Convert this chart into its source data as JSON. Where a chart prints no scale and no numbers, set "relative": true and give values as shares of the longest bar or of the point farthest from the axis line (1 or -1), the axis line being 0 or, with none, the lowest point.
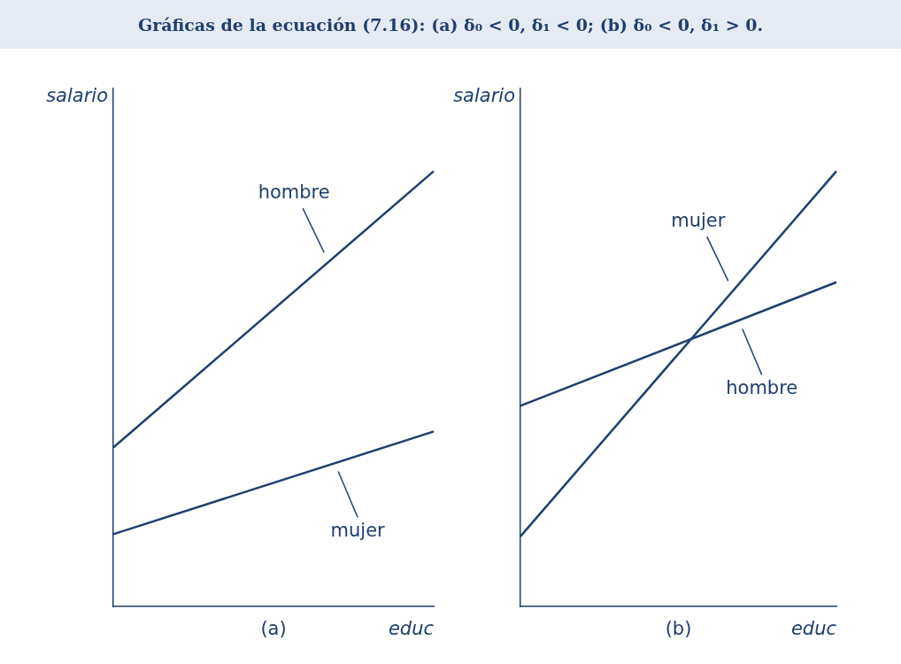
{
  "chart_data": [
    {
      "type": "line",
      "title": "Gráficas de la ecuación (7.16):  (a) δ₀ < 0, δ₁ < 0;  (b) δ₀ < 0, δ₁ > 0.",
      "relative": true,
      "categories": [
        null,
        null
      ],
      "xlabel": "educ",
      "ylabel": "salario",
      "annotations": [
        "(a)"
      ],
      "legend": false,
      "grid": false,
      "marker": "none",
      "line_style": "solid",
      "series": [
        {
          "name": "hombre",
          "color": "#1f3f6e",
          "values": [
            0.365,
            1
          ]
        },
        {
          "name": "mujer",
          "color": "#1f3f6e",
          "values": [
            0.166,
            0.402
          ]
        }
      ]
    },
    {
      "type": "line",
      "relative": true,
      "categories": [
        null,
        null
      ],
      "xlabel": "educ",
      "ylabel": "salario",
      "annotations": [
        "(b)"
      ],
      "legend": false,
      "grid": false,
      "marker": "none",
      "line_style": "solid",
      "series": [
        {
          "name": "mujer",
          "color": "#1f3f6e",
          "values": [
            0.161,
            1
          ]
        },
        {
          "name": "hombre",
          "color": "#1f3f6e",
          "values": [
            0.461,
            0.745
          ]
        }
      ]
    }
  ]
}
